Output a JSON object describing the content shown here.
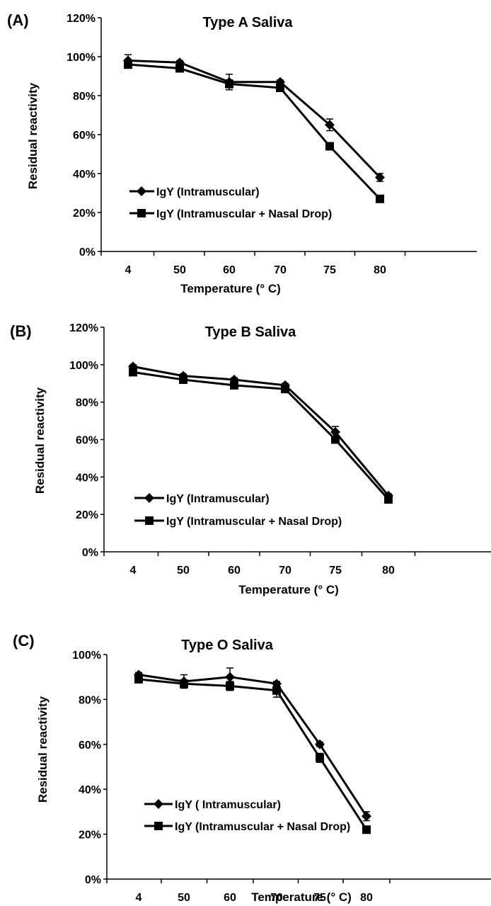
{
  "figure": {
    "background": "#ffffff",
    "ink": "#000000"
  },
  "chart_data": [
    {
      "type": "line",
      "panel_label": "(A)",
      "title": "Type A Saliva",
      "xlabel": "Temperature (° C)",
      "ylabel": "Residual reactivity",
      "categories": [
        "4",
        "50",
        "60",
        "70",
        "75",
        "80"
      ],
      "ylim": [
        0,
        120
      ],
      "yticks": [
        "0%",
        "20%",
        "40%",
        "60%",
        "80%",
        "100%",
        "120%"
      ],
      "grid": false,
      "legend_position": "bottom-left",
      "series": [
        {
          "name": "IgY (Intramuscular)",
          "marker": "diamond",
          "values": [
            98,
            97,
            87,
            87,
            65,
            38
          ],
          "errors": [
            3,
            1,
            4,
            1,
            3,
            2
          ]
        },
        {
          "name": "IgY (Intramuscular + Nasal Drop)",
          "marker": "square",
          "values": [
            96,
            94,
            86,
            84,
            54,
            27
          ],
          "errors": [
            2,
            1,
            2,
            1,
            1,
            1
          ]
        }
      ]
    },
    {
      "type": "line",
      "panel_label": "(B)",
      "title": "Type B Saliva",
      "xlabel": "Temperature (° C)",
      "ylabel": "Residual reactivity",
      "categories": [
        "4",
        "50",
        "60",
        "70",
        "75",
        "80"
      ],
      "ylim": [
        0,
        120
      ],
      "yticks": [
        "0%",
        "20%",
        "40%",
        "60%",
        "80%",
        "100%",
        "120%"
      ],
      "grid": false,
      "legend_position": "bottom-left",
      "series": [
        {
          "name": "IgY (Intramuscular)",
          "marker": "diamond",
          "values": [
            99,
            94,
            92,
            89,
            64,
            30
          ],
          "errors": [
            1,
            1,
            1,
            1,
            3,
            1
          ]
        },
        {
          "name": "IgY (Intramuscular + Nasal Drop)",
          "marker": "square",
          "values": [
            96,
            92,
            89,
            87,
            60,
            28
          ],
          "errors": [
            1,
            1,
            1,
            1,
            1,
            1
          ]
        }
      ]
    },
    {
      "type": "line",
      "panel_label": "(C)",
      "title": "Type O Saliva",
      "xlabel": "Temperature (° C)",
      "ylabel": "Residual reactivity",
      "categories": [
        "4",
        "50",
        "60",
        "70",
        "75",
        "80"
      ],
      "ylim": [
        0,
        100
      ],
      "yticks": [
        "0%",
        "20%",
        "40%",
        "60%",
        "80%",
        "100%"
      ],
      "grid": false,
      "legend_position": "bottom-left",
      "series": [
        {
          "name": "IgY ( Intramuscular)",
          "marker": "diamond",
          "values": [
            91,
            88,
            90,
            87,
            60,
            28
          ],
          "errors": [
            1,
            3,
            4,
            1,
            1,
            2
          ]
        },
        {
          "name": "IgY (Intramuscular + Nasal Drop)",
          "marker": "square",
          "values": [
            89,
            87,
            86,
            84,
            54,
            22
          ],
          "errors": [
            1,
            1,
            2,
            3,
            2,
            1
          ]
        }
      ]
    }
  ]
}
